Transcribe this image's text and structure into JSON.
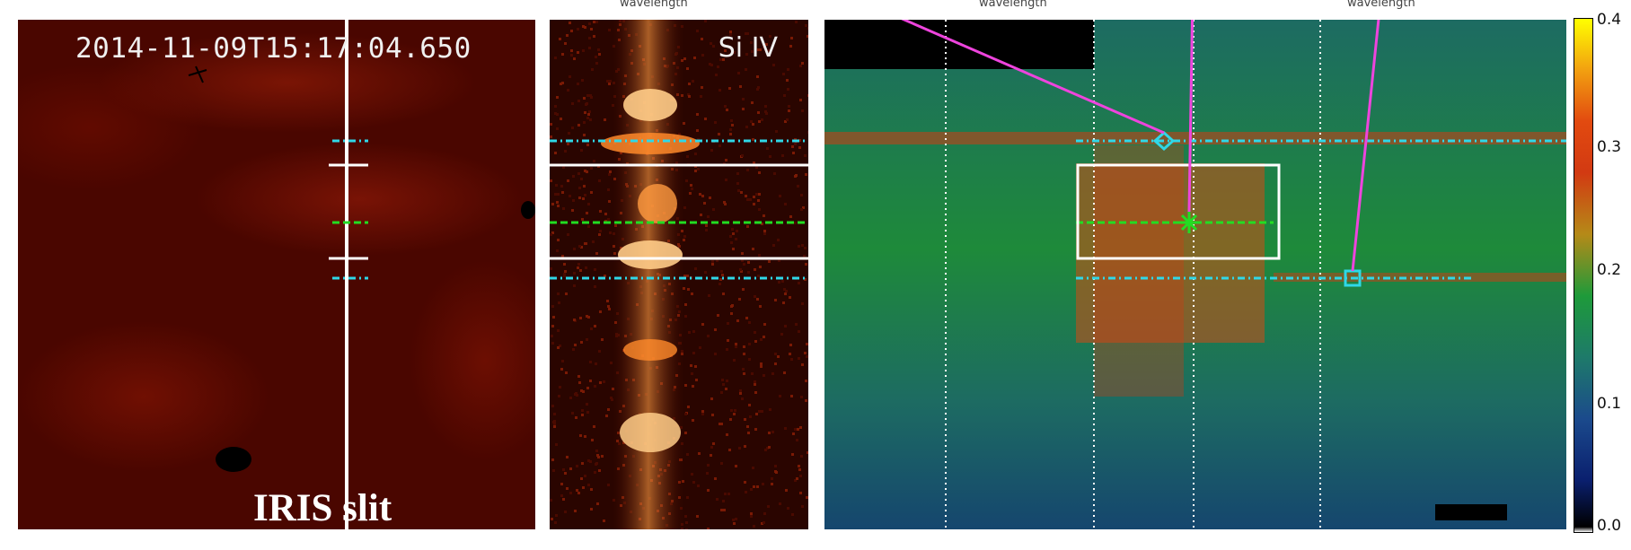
{
  "panel_aia": {
    "timestamp": "2014-11-09T15:17:04.650",
    "slit_label": "IRIS slit"
  },
  "panel_spectrum": {
    "line_label": "Si IV"
  },
  "colorbar": {
    "ticks": [
      "0.0",
      "0.1",
      "0.2",
      "0.3",
      "0.4"
    ]
  },
  "top_labels": [
    "wavelength",
    "wavelength",
    "wavelength"
  ],
  "colors": {
    "marker_cyan": "#2fd8e8",
    "marker_green": "#22dd22",
    "pointer_magenta": "#ee44dd"
  }
}
